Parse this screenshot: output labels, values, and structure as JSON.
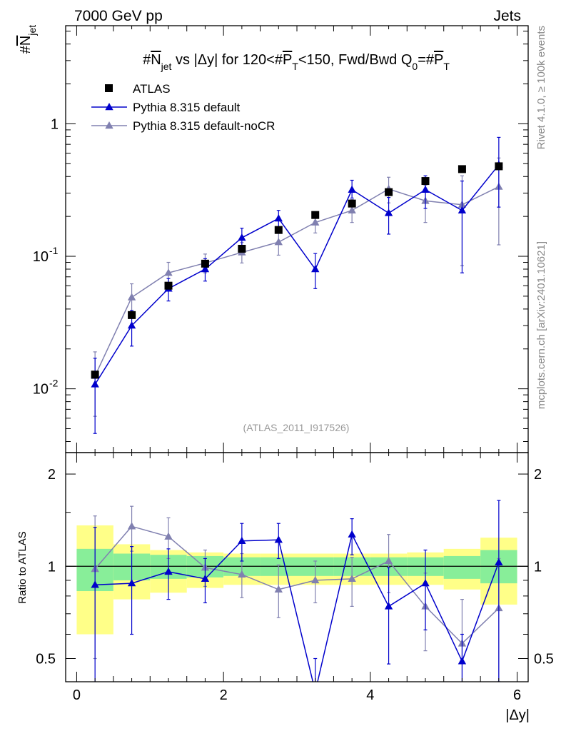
{
  "header": {
    "left": "7000 GeV pp",
    "right": "Jets"
  },
  "side_labels": {
    "rivet": "Rivet 4.1.0, ≥ 100k events",
    "mcplots": "mcplots.cern.ch [arXiv:2401.10621]"
  },
  "chart_data": {
    "type": "line",
    "title": "#N_jet vs |Δy| for 120<#P_T<150, Fwd/Bwd Q_0=#P_T",
    "ylabel": "#N_jet",
    "xlabel": "|Δy|",
    "analysis_tag": "(ATLAS_2011_I917526)",
    "xlim": [
      -0.15,
      6.15
    ],
    "ylim_main": [
      0.0033,
      5.5
    ],
    "yscale_main": "log",
    "main_yticks": [
      {
        "value": 0.01,
        "label": "10",
        "exp": "-2"
      },
      {
        "value": 0.1,
        "label": "10",
        "exp": "-1"
      },
      {
        "value": 1,
        "label": "1",
        "exp": ""
      }
    ],
    "xticks": [
      0,
      2,
      4,
      6
    ],
    "x_edges": [
      0,
      0.5,
      1,
      1.5,
      2,
      2.5,
      3,
      3.5,
      4,
      4.5,
      5,
      5.5,
      6
    ],
    "x": [
      0.25,
      0.75,
      1.25,
      1.75,
      2.25,
      2.75,
      3.25,
      3.75,
      4.25,
      4.75,
      5.25,
      5.75
    ],
    "legend": [
      {
        "name": "ATLAS",
        "color": "#000000",
        "marker": "square"
      },
      {
        "name": "Pythia 8.315 default",
        "color": "#0000cc",
        "marker": "triangle"
      },
      {
        "name": "Pythia 8.315 default-noCR",
        "color": "#8080b0",
        "marker": "triangle"
      }
    ],
    "data": {
      "name": "ATLAS",
      "values": [
        0.0128,
        0.036,
        0.06,
        0.088,
        0.114,
        0.158,
        0.205,
        0.25,
        0.305,
        0.37,
        0.455,
        0.478
      ]
    },
    "series": [
      {
        "name": "Pythia 8.315 default",
        "color": "#0000cc",
        "values": [
          0.0108,
          0.03,
          0.057,
          0.08,
          0.138,
          0.193,
          0.08,
          0.318,
          0.212,
          0.318,
          0.222,
          0.49
        ],
        "err_lo": [
          0.0046,
          0.021,
          0.046,
          0.065,
          0.118,
          0.167,
          0.057,
          0.275,
          0.147,
          0.23,
          0.075,
          0.235
        ],
        "err_hi": [
          0.017,
          0.039,
          0.068,
          0.096,
          0.163,
          0.222,
          0.105,
          0.375,
          0.278,
          0.405,
          0.37,
          0.79
        ],
        "ratio": [
          0.87,
          0.88,
          0.96,
          0.91,
          1.21,
          1.22,
          0.39,
          1.27,
          0.74,
          0.88,
          0.49,
          1.03
        ],
        "ratio_err_lo": [
          0.38,
          0.6,
          0.78,
          0.76,
          1.04,
          1.06,
          0.28,
          1.09,
          0.48,
          0.62,
          0.38,
          0.42
        ],
        "ratio_err_hi": [
          1.34,
          1.16,
          1.14,
          1.06,
          1.38,
          1.38,
          0.5,
          1.43,
          0.99,
          1.13,
          0.6,
          1.64
        ]
      },
      {
        "name": "Pythia 8.315 default-noCR",
        "color": "#8080b0",
        "values": [
          0.0125,
          0.049,
          0.075,
          0.089,
          0.107,
          0.128,
          0.18,
          0.222,
          0.322,
          0.262,
          0.245,
          0.335
        ],
        "err_lo": [
          0.0062,
          0.038,
          0.061,
          0.075,
          0.089,
          0.102,
          0.15,
          0.18,
          0.253,
          0.18,
          0.085,
          0.122
        ],
        "err_hi": [
          0.019,
          0.062,
          0.09,
          0.104,
          0.127,
          0.155,
          0.212,
          0.268,
          0.395,
          0.345,
          0.405,
          0.552
        ],
        "ratio": [
          0.98,
          1.35,
          1.25,
          0.99,
          0.94,
          0.84,
          0.9,
          0.91,
          1.04,
          0.74,
          0.56,
          0.73
        ],
        "ratio_err_lo": [
          0.5,
          1.12,
          1.06,
          0.86,
          0.79,
          0.68,
          0.76,
          0.74,
          0.82,
          0.53,
          0.38,
          0.39
        ],
        "ratio_err_hi": [
          1.46,
          1.57,
          1.44,
          1.13,
          1.1,
          1.01,
          1.04,
          1.07,
          1.27,
          0.95,
          0.78,
          1.06
        ]
      }
    ],
    "ratio_panel": {
      "ylabel": "Ratio to ATLAS",
      "ylim": [
        0.42,
        2.35
      ],
      "yscale": "log",
      "yticks": [
        0.5,
        1,
        2
      ],
      "green_band": {
        "lo": [
          0.83,
          0.9,
          0.91,
          0.92,
          0.93,
          0.93,
          0.93,
          0.93,
          0.93,
          0.93,
          0.91,
          0.88
        ],
        "hi": [
          1.14,
          1.1,
          1.09,
          1.08,
          1.07,
          1.07,
          1.07,
          1.07,
          1.07,
          1.07,
          1.08,
          1.13
        ]
      },
      "yellow_band": {
        "lo": [
          0.6,
          0.78,
          0.82,
          0.85,
          0.87,
          0.87,
          0.87,
          0.87,
          0.87,
          0.87,
          0.84,
          0.75
        ],
        "hi": [
          1.36,
          1.18,
          1.13,
          1.11,
          1.1,
          1.1,
          1.1,
          1.1,
          1.1,
          1.11,
          1.14,
          1.24
        ]
      }
    }
  }
}
